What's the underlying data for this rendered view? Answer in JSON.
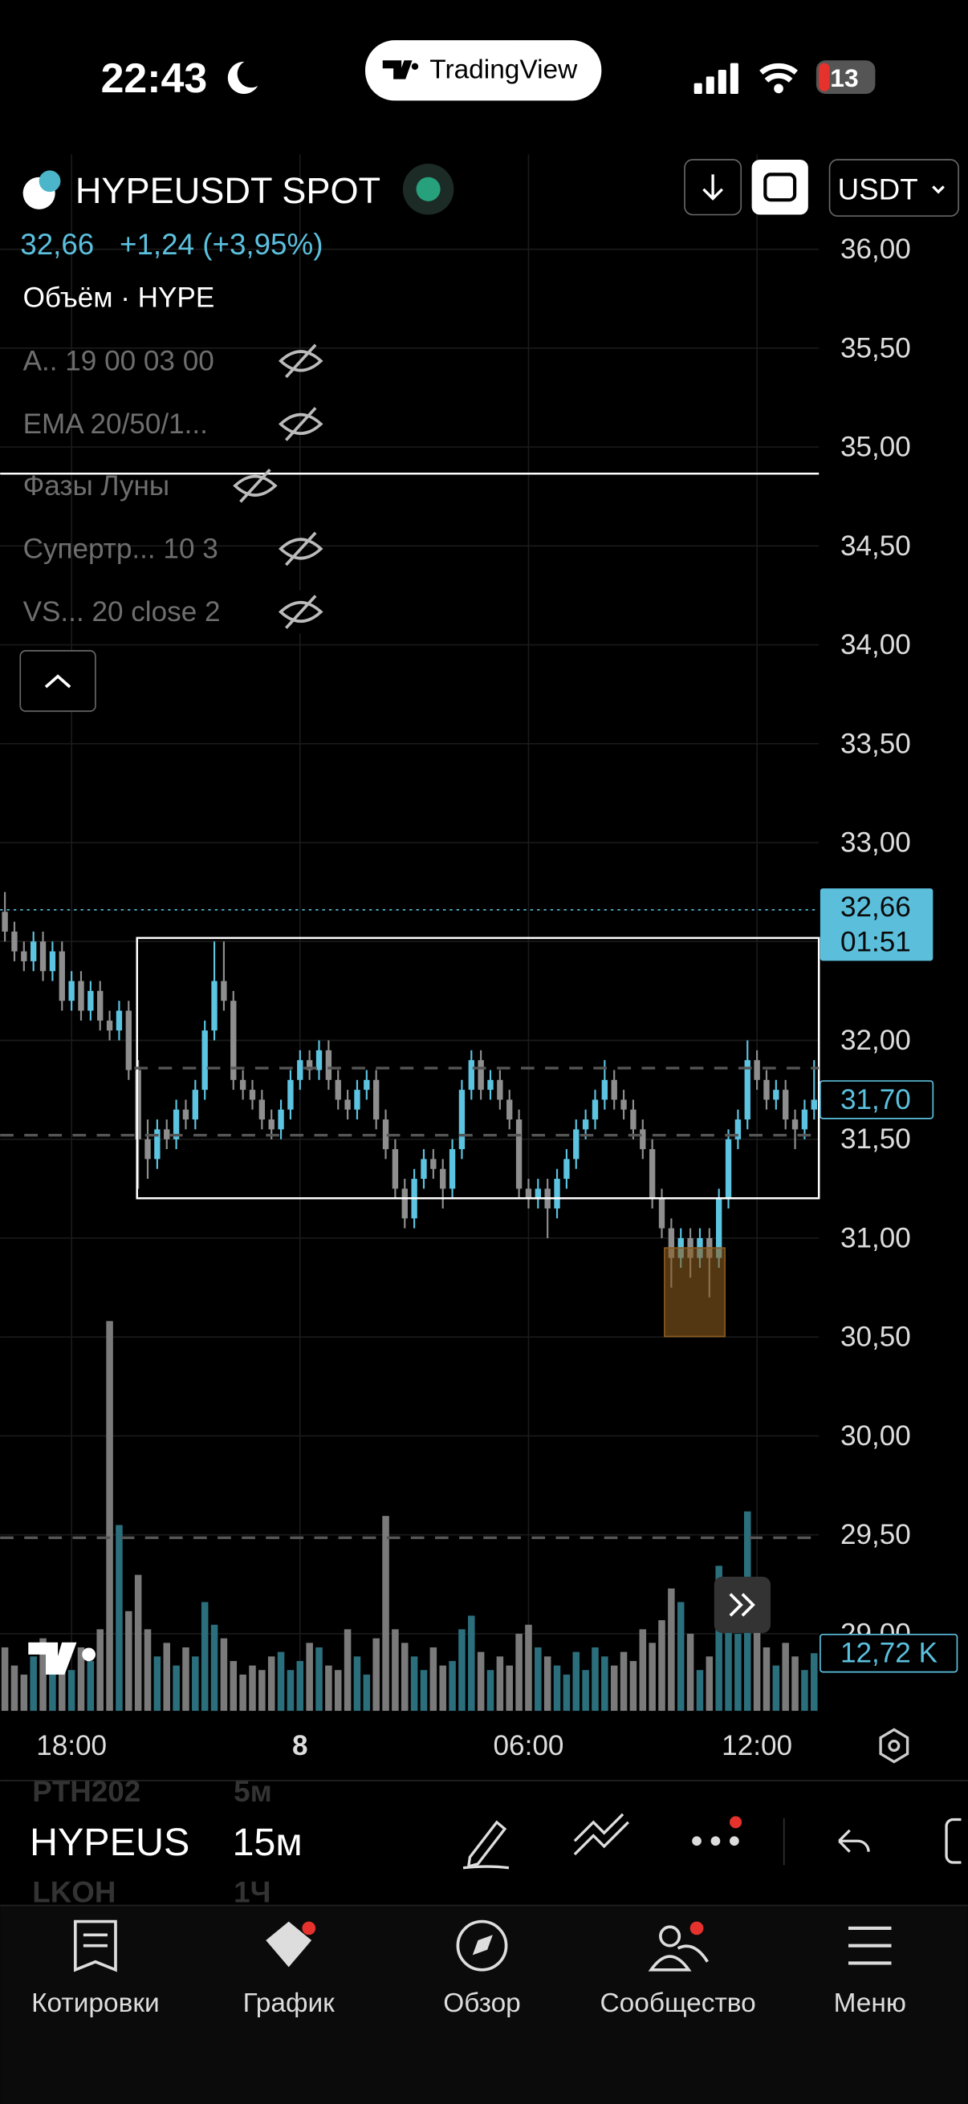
{
  "status_bar": {
    "time": "22:43",
    "app": "TradingView",
    "battery": "13"
  },
  "header": {
    "symbol": "HYPEUSDT SPOT",
    "price": "32,66",
    "change": "+1,24 (+3,95%)",
    "volume_label": "Объём · HYPE",
    "currency": "USDT"
  },
  "indicators": [
    "A.. 19 00 03 00",
    "EMA 20/50/1...",
    "Фазы Луны",
    "Супертр... 10 3",
    "VS...  20 close 2"
  ],
  "chart_data": {
    "type": "candlestick",
    "categories": [
      null,
      null,
      null,
      null,
      null,
      null,
      null,
      "18:00",
      null,
      null,
      null,
      null,
      null,
      null,
      null,
      null,
      null,
      null,
      null,
      null,
      null,
      null,
      null,
      null,
      null,
      null,
      null,
      null,
      null,
      null,
      null,
      "8",
      null,
      null,
      null,
      null,
      null,
      null,
      null,
      null,
      null,
      null,
      null,
      null,
      null,
      null,
      null,
      null,
      null,
      null,
      null,
      null,
      null,
      null,
      null,
      "06:00",
      null,
      null,
      null,
      null,
      null,
      null,
      null,
      null,
      null,
      null,
      null,
      null,
      null,
      null,
      null,
      null,
      null,
      null,
      null,
      null,
      null,
      null,
      null,
      "12:00",
      null,
      null,
      null,
      null,
      null,
      null
    ],
    "open": [
      32.65,
      32.55,
      32.45,
      32.4,
      32.5,
      32.35,
      32.45,
      32.2,
      32.3,
      32.15,
      32.25,
      32.1,
      32.05,
      32.15,
      31.85,
      31.5,
      31.4,
      31.55,
      31.5,
      31.65,
      31.6,
      31.75,
      32.05,
      32.3,
      32.2,
      31.8,
      31.75,
      31.7,
      31.6,
      31.55,
      31.65,
      31.8,
      31.9,
      31.85,
      31.95,
      31.8,
      31.7,
      31.65,
      31.75,
      31.8,
      31.6,
      31.45,
      31.25,
      31.1,
      31.3,
      31.4,
      31.35,
      31.25,
      31.45,
      31.75,
      31.9,
      31.75,
      31.8,
      31.7,
      31.6,
      31.25,
      31.2,
      31.25,
      31.15,
      31.3,
      31.4,
      31.55,
      31.6,
      31.7,
      31.8,
      31.7,
      31.65,
      31.55,
      31.45,
      31.2,
      31.05,
      30.9,
      31.0,
      30.9,
      31.0,
      30.9,
      31.2,
      31.5,
      31.6,
      31.9,
      31.8,
      31.7,
      31.75,
      31.6,
      31.55,
      31.65
    ],
    "high": [
      32.75,
      32.6,
      32.5,
      32.55,
      32.55,
      32.5,
      32.5,
      32.35,
      32.35,
      32.3,
      32.3,
      32.15,
      32.2,
      32.2,
      31.9,
      31.6,
      31.6,
      31.6,
      31.7,
      31.7,
      31.8,
      32.1,
      32.5,
      32.5,
      32.25,
      31.85,
      31.8,
      31.75,
      31.65,
      31.7,
      31.85,
      31.95,
      31.95,
      32.0,
      32.0,
      31.85,
      31.75,
      31.8,
      31.85,
      31.85,
      31.65,
      31.5,
      31.3,
      31.35,
      31.45,
      31.45,
      31.4,
      31.5,
      31.8,
      31.95,
      31.95,
      31.85,
      31.85,
      31.75,
      31.65,
      31.3,
      31.3,
      31.3,
      31.35,
      31.45,
      31.6,
      31.65,
      31.75,
      31.9,
      31.85,
      31.75,
      31.7,
      31.6,
      31.5,
      31.25,
      31.1,
      31.05,
      31.05,
      31.05,
      31.05,
      31.25,
      31.55,
      31.65,
      32.0,
      31.95,
      31.85,
      31.8,
      31.8,
      31.65,
      31.7,
      31.9
    ],
    "low": [
      32.5,
      32.4,
      32.35,
      32.35,
      32.3,
      32.3,
      32.15,
      32.15,
      32.1,
      32.1,
      32.05,
      32.0,
      32.0,
      31.8,
      31.25,
      31.3,
      31.35,
      31.45,
      31.45,
      31.55,
      31.55,
      31.7,
      32.0,
      32.15,
      31.75,
      31.7,
      31.65,
      31.55,
      31.5,
      31.5,
      31.6,
      31.75,
      31.8,
      31.8,
      31.75,
      31.65,
      31.6,
      31.6,
      31.7,
      31.55,
      31.4,
      31.2,
      31.05,
      31.05,
      31.25,
      31.3,
      31.15,
      31.2,
      31.4,
      31.7,
      31.7,
      31.7,
      31.65,
      31.55,
      31.2,
      31.15,
      31.15,
      31.0,
      31.1,
      31.25,
      31.35,
      31.5,
      31.55,
      31.65,
      31.65,
      31.6,
      31.5,
      31.4,
      31.15,
      31.0,
      30.75,
      30.85,
      30.8,
      30.85,
      30.7,
      30.85,
      31.15,
      31.45,
      31.55,
      31.75,
      31.65,
      31.65,
      31.55,
      31.45,
      31.5,
      31.6
    ],
    "close": [
      32.55,
      32.45,
      32.4,
      32.5,
      32.35,
      32.45,
      32.2,
      32.3,
      32.15,
      32.25,
      32.1,
      32.05,
      32.15,
      31.85,
      31.5,
      31.4,
      31.55,
      31.5,
      31.65,
      31.6,
      31.75,
      32.05,
      32.3,
      32.2,
      31.8,
      31.75,
      31.7,
      31.6,
      31.55,
      31.65,
      31.8,
      31.9,
      31.85,
      31.95,
      31.8,
      31.7,
      31.65,
      31.75,
      31.8,
      31.6,
      31.45,
      31.25,
      31.1,
      31.3,
      31.4,
      31.35,
      31.25,
      31.45,
      31.75,
      31.9,
      31.75,
      31.8,
      31.7,
      31.6,
      31.25,
      31.2,
      31.25,
      31.15,
      31.3,
      31.4,
      31.55,
      31.6,
      31.7,
      31.8,
      31.7,
      31.65,
      31.55,
      31.45,
      31.2,
      31.05,
      30.9,
      31.0,
      30.9,
      31.0,
      30.9,
      31.2,
      31.5,
      31.6,
      31.9,
      31.8,
      31.7,
      31.75,
      31.6,
      31.55,
      31.65,
      31.7
    ],
    "volume": [
      14,
      10,
      8,
      12,
      16,
      10,
      12,
      9,
      14,
      11,
      18,
      86,
      41,
      22,
      30,
      18,
      12,
      15,
      10,
      14,
      12,
      24,
      19,
      16,
      11,
      8,
      10,
      9,
      12,
      13,
      9,
      11,
      15,
      14,
      10,
      9,
      18,
      12,
      8,
      16,
      43,
      18,
      15,
      12,
      9,
      14,
      10,
      11,
      18,
      21,
      13,
      9,
      12,
      10,
      17,
      19,
      14,
      12,
      10,
      8,
      13,
      9,
      14,
      12,
      10,
      13,
      11,
      18,
      15,
      20,
      27,
      24,
      17,
      9,
      12,
      32,
      24,
      17,
      44,
      20,
      14,
      10,
      15,
      12,
      9,
      12.72
    ],
    "ylim": [
      28.61,
      36.48
    ],
    "yticks": [
      {
        "value": 29,
        "label": "29,00"
      },
      {
        "value": 29.5,
        "label": "29,50"
      },
      {
        "value": 30,
        "label": "30,00"
      },
      {
        "value": 30.5,
        "label": "30,50"
      },
      {
        "value": 31,
        "label": "31,00"
      },
      {
        "value": 31.5,
        "label": "31,50"
      },
      {
        "value": 32,
        "label": "32,00"
      },
      {
        "value": 32.5,
        "label": "32,50"
      },
      {
        "value": 33,
        "label": "33,00"
      },
      {
        "value": 33.5,
        "label": "33,50"
      },
      {
        "value": 34,
        "label": "34,00"
      },
      {
        "value": 34.5,
        "label": "34,50"
      },
      {
        "value": 35,
        "label": "35,00"
      },
      {
        "value": 35.5,
        "label": "35,50"
      },
      {
        "value": 36,
        "label": "36,00"
      }
    ],
    "vlim": [
      0,
      90
    ],
    "grid": true,
    "up_color": "#5cc3e0",
    "down_color": "#8e8e8e",
    "volume_up_color": "#2b6f7d",
    "volume_down_color": "#7a7a7a",
    "last_price": {
      "value": 32.66,
      "label": "32,66",
      "countdown": "01:51"
    },
    "marker": {
      "value": 31.7,
      "label": "31,70"
    },
    "volume_marker": {
      "value": 12.72,
      "label": "12,72 K"
    }
  },
  "toolbar": {
    "symbol": "HYPEUS",
    "interval": "15м",
    "ghost_above": [
      "PTH202",
      "5м"
    ],
    "ghost_below": [
      "LKOH",
      "1Ч"
    ]
  },
  "nav": [
    "Котировки",
    "График",
    "Обзор",
    "Сообщество",
    "Меню"
  ]
}
